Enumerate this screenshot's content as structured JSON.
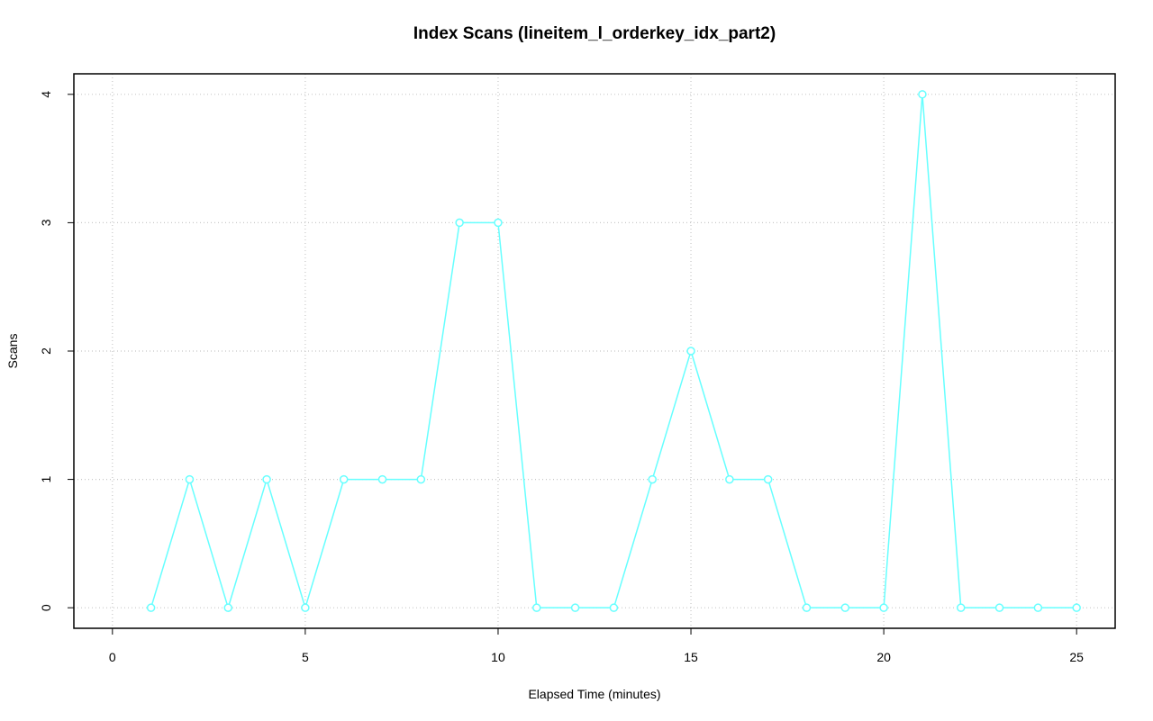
{
  "chart_data": {
    "type": "line",
    "title": "Index Scans (lineitem_l_orderkey_idx_part2)",
    "x_label": "Elapsed Time (minutes)",
    "y_label": "Scans",
    "x": [
      1,
      2,
      3,
      4,
      5,
      6,
      7,
      8,
      9,
      10,
      11,
      12,
      13,
      14,
      15,
      16,
      17,
      18,
      19,
      20,
      21,
      22,
      23,
      24,
      25
    ],
    "series": [
      {
        "color": "#66ffff",
        "values": [
          0,
          1,
          0,
          1,
          0,
          1,
          1,
          1,
          3,
          3,
          0,
          0,
          0,
          1,
          2,
          1,
          1,
          0,
          0,
          0,
          4,
          0,
          0,
          0,
          0
        ]
      }
    ],
    "xlim": [
      -1,
      26
    ],
    "xticks": [
      0,
      5,
      10,
      15,
      20,
      25
    ],
    "ylim": [
      -0.16,
      4.16
    ],
    "yticks": [
      0,
      1,
      2,
      3,
      4
    ],
    "grid": true
  }
}
